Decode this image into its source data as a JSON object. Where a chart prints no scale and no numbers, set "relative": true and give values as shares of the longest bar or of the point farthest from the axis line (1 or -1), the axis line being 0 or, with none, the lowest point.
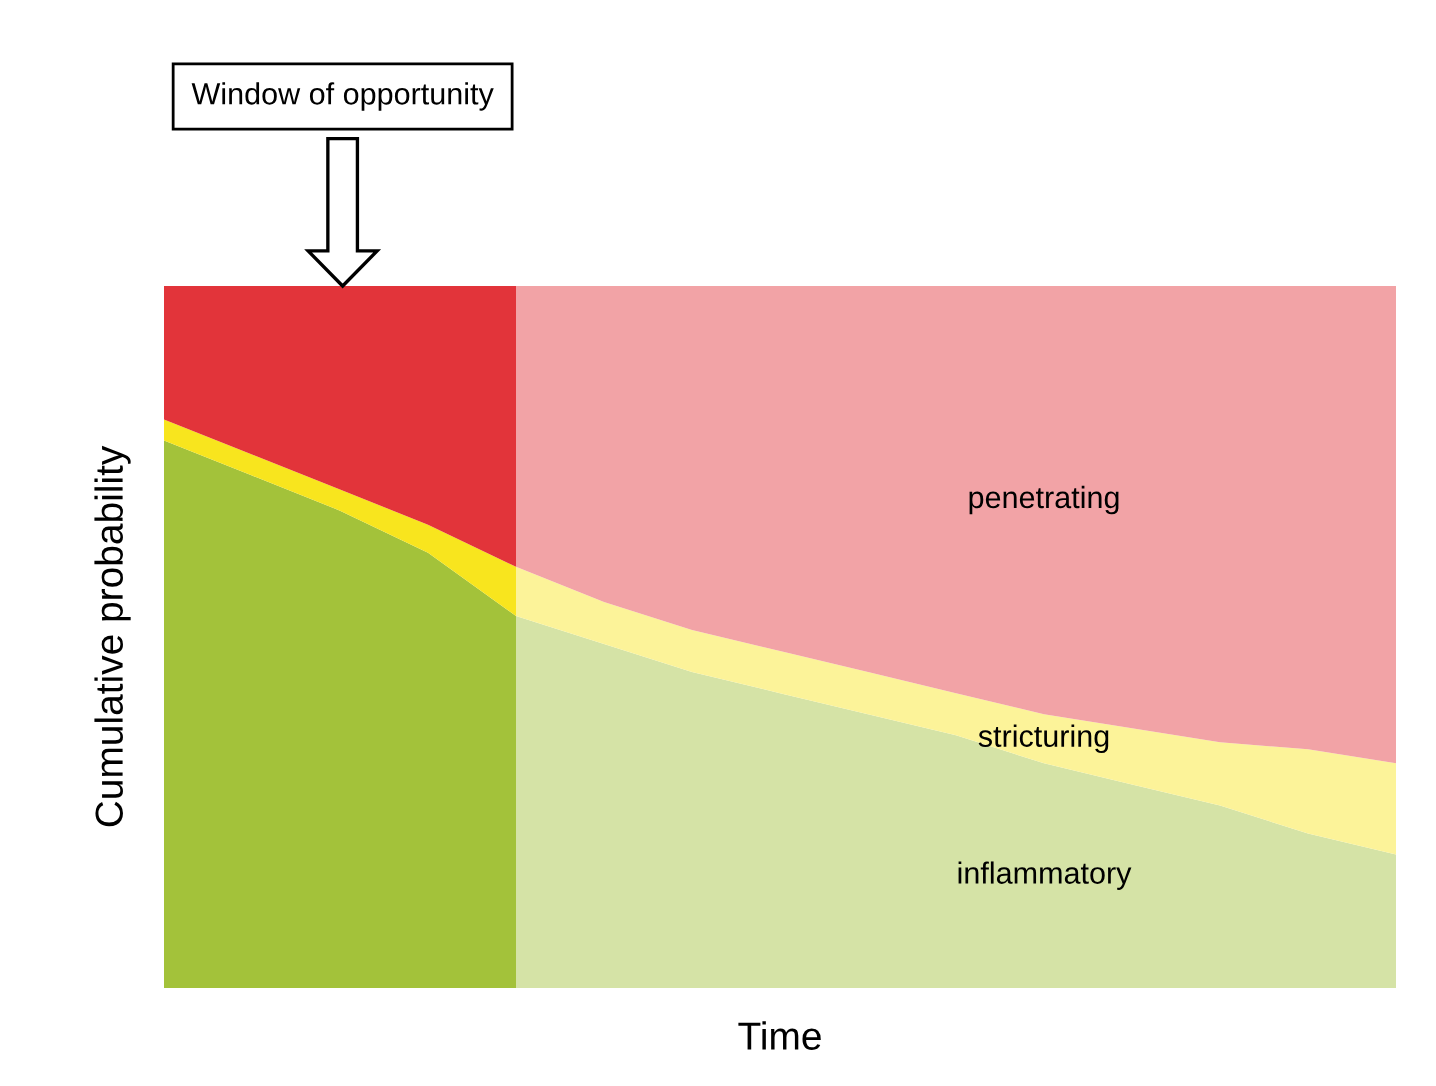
{
  "chart_data": {
    "type": "area",
    "stacked": true,
    "relative": true,
    "xlabel": "Time",
    "ylabel": "Cumulative probability",
    "annotations": [
      "Window of opportunity"
    ],
    "tick_labels": false,
    "legend": false,
    "categories": [
      null,
      null,
      null,
      null,
      null,
      null,
      null,
      null,
      null,
      null,
      null,
      null,
      null,
      null,
      null
    ],
    "series": [
      {
        "name": "inflammatory",
        "values": [
          0.78,
          0.73,
          0.68,
          0.62,
          0.53,
          0.49,
          0.45,
          0.42,
          0.39,
          0.36,
          0.32,
          0.29,
          0.26,
          0.22,
          0.19
        ],
        "color": "#a3c23a"
      },
      {
        "name": "stricturing",
        "values": [
          0.03,
          0.03,
          0.03,
          0.04,
          0.07,
          0.06,
          0.06,
          0.06,
          0.06,
          0.06,
          0.07,
          0.08,
          0.09,
          0.12,
          0.13
        ],
        "color": "#f8e51e"
      },
      {
        "name": "penetrating",
        "values": [
          0.19,
          0.24,
          0.29,
          0.34,
          0.4,
          0.45,
          0.49,
          0.52,
          0.55,
          0.58,
          0.61,
          0.63,
          0.65,
          0.66,
          0.68
        ],
        "color": "#e2343a"
      }
    ]
  }
}
